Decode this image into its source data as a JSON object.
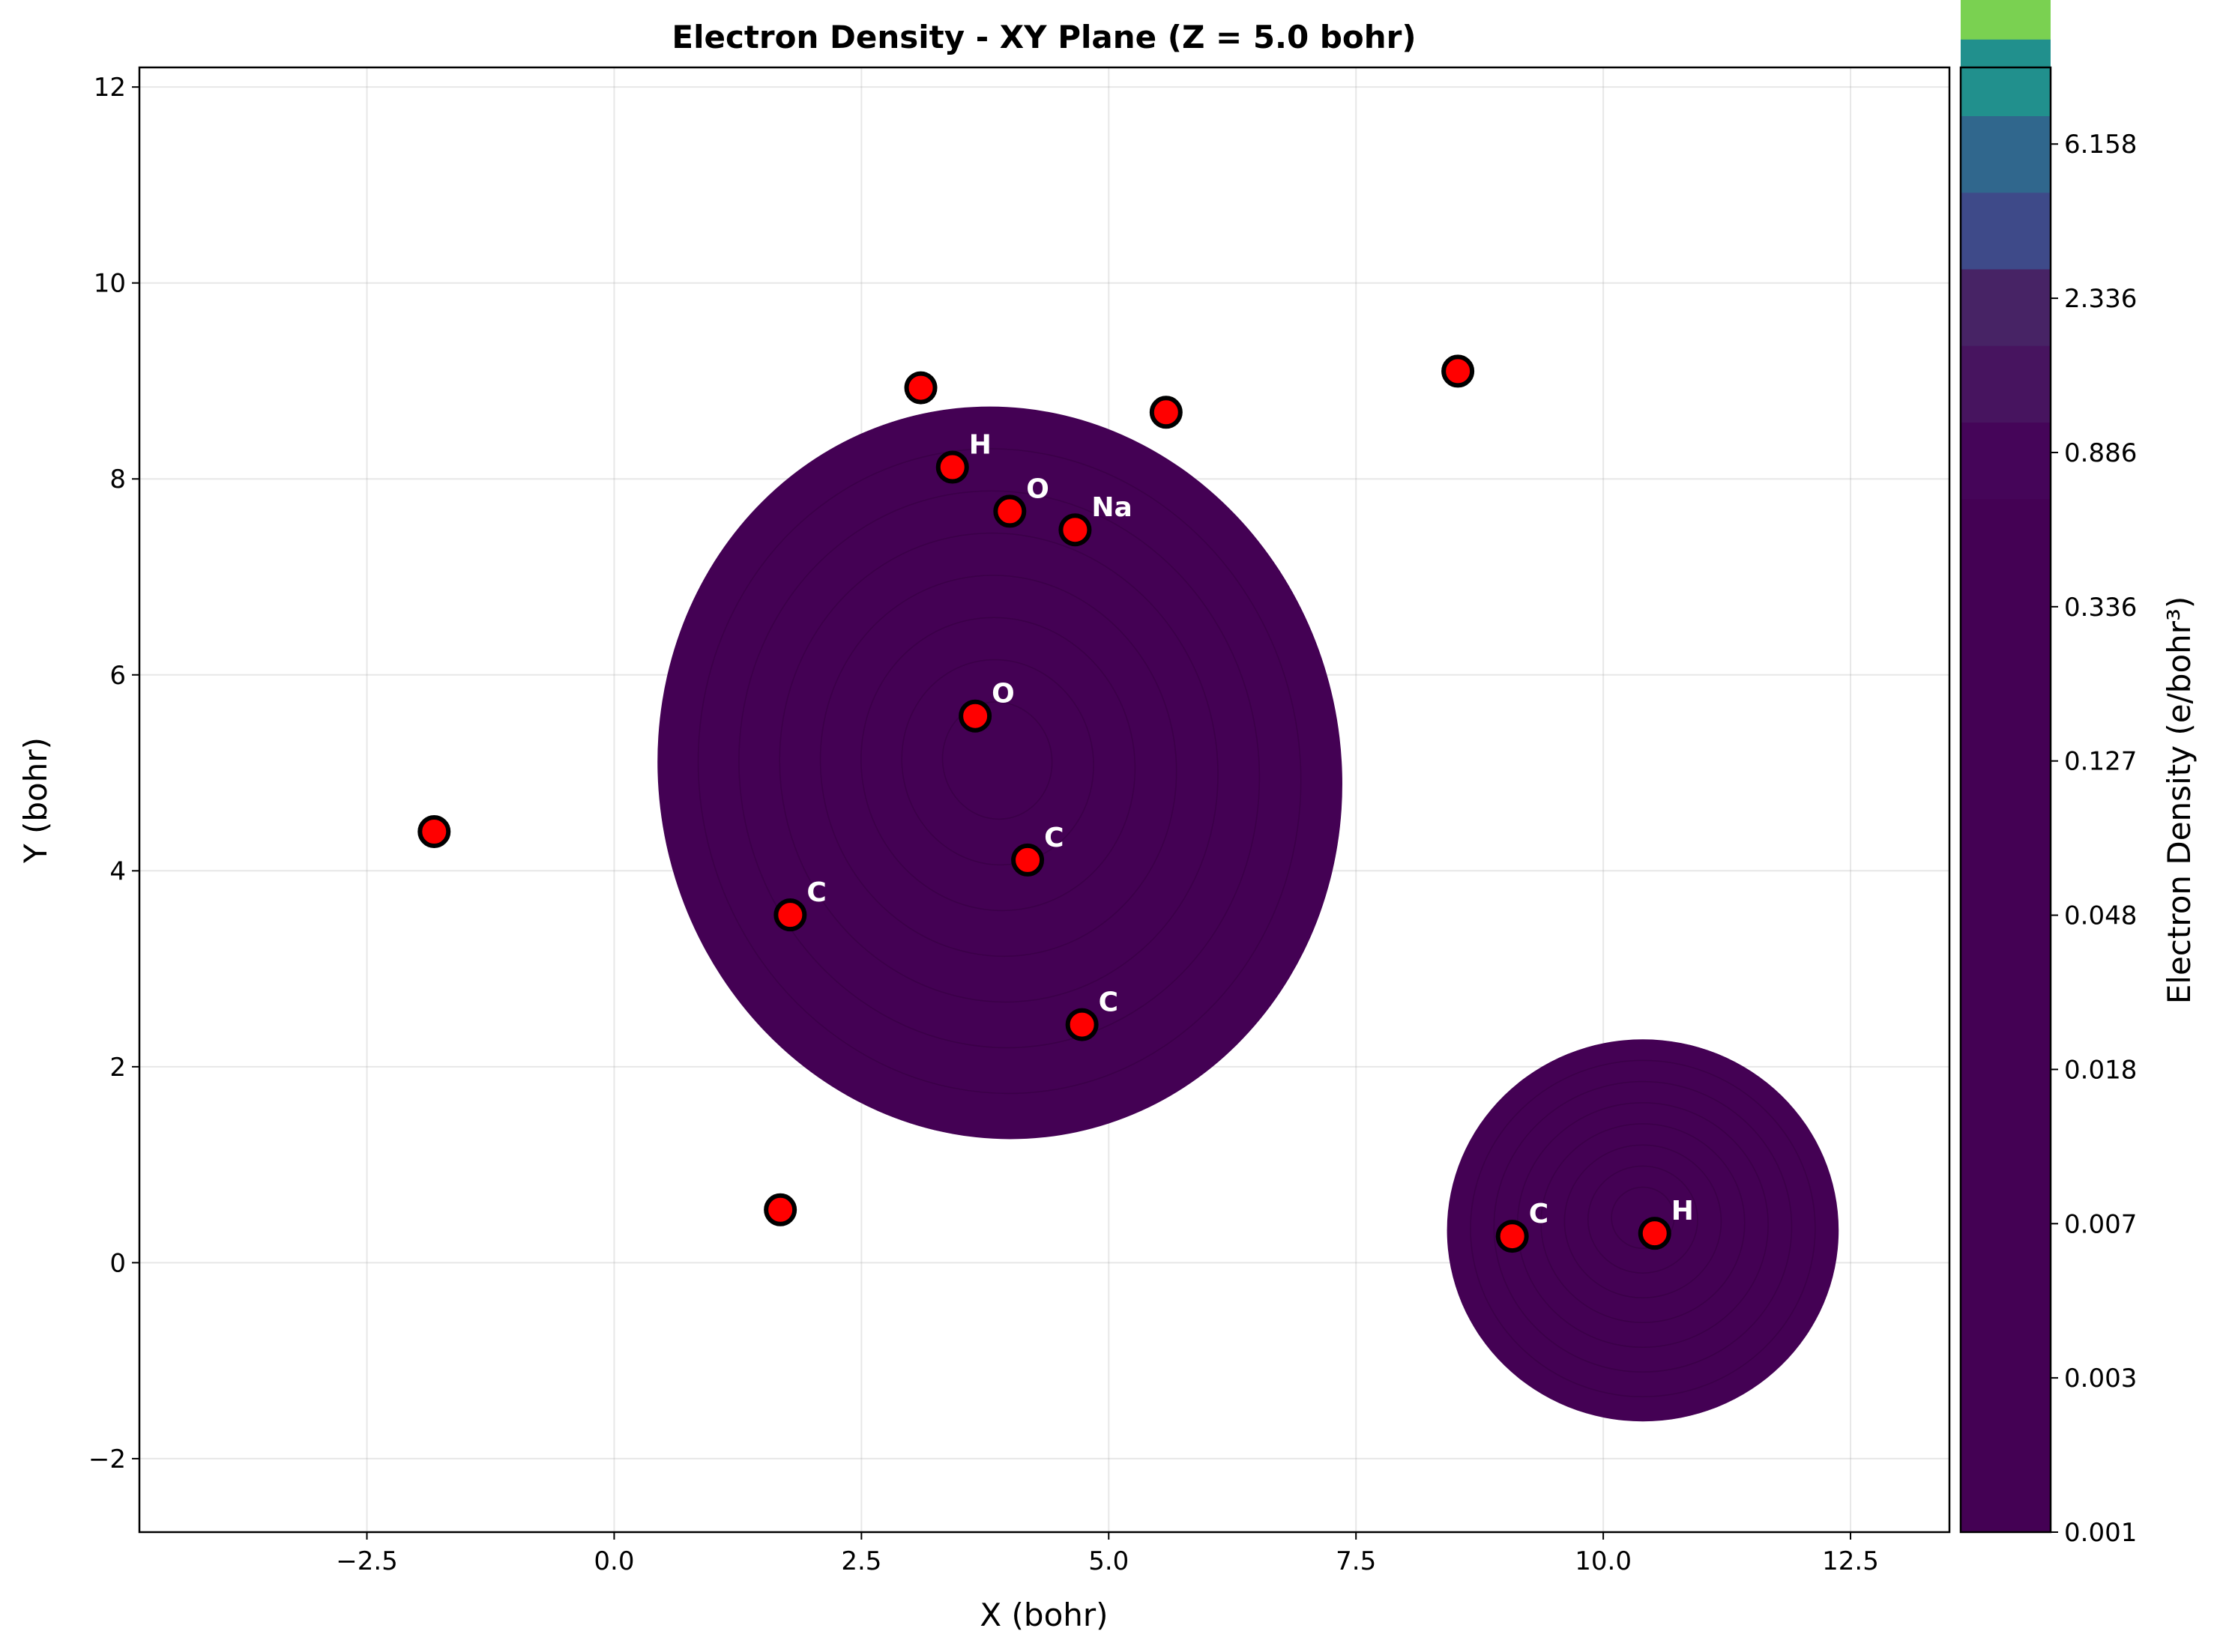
{
  "chart_data": {
    "type": "contour",
    "title": "Electron Density - XY Plane (Z = 5.0 bohr)",
    "xlabel": "X (bohr)",
    "ylabel": "Y (bohr)",
    "xlim": [
      -4.8,
      13.5
    ],
    "ylim": [
      -2.75,
      12.2
    ],
    "xticks": [
      -2.5,
      0.0,
      2.5,
      5.0,
      7.5,
      10.0,
      12.5
    ],
    "xtick_labels": [
      "−2.5",
      "0.0",
      "2.5",
      "5.0",
      "7.5",
      "10.0",
      "12.5"
    ],
    "yticks": [
      -2,
      0,
      2,
      4,
      6,
      8,
      10,
      12
    ],
    "ytick_labels": [
      "−2",
      "0",
      "2",
      "4",
      "6",
      "8",
      "10",
      "12"
    ],
    "grid": true,
    "colormap": "viridis",
    "density_regions": [
      {
        "cx": 3.9,
        "cy": 5.0,
        "rx": 3.45,
        "ry": 3.75,
        "rotation": -12,
        "color": "#440154"
      },
      {
        "cx": 10.4,
        "cy": 0.33,
        "rx": 1.98,
        "ry": 1.95,
        "rotation": 0,
        "color": "#440154"
      }
    ],
    "atoms": [
      {
        "x": 3.1,
        "y": 8.93,
        "label": ""
      },
      {
        "x": 3.42,
        "y": 8.12,
        "label": "H"
      },
      {
        "x": 4.0,
        "y": 7.67,
        "label": "O"
      },
      {
        "x": 4.66,
        "y": 7.48,
        "label": "Na"
      },
      {
        "x": 5.58,
        "y": 8.68,
        "label": ""
      },
      {
        "x": 8.53,
        "y": 9.1,
        "label": ""
      },
      {
        "x": 3.65,
        "y": 5.58,
        "label": "O"
      },
      {
        "x": 4.18,
        "y": 4.11,
        "label": "C"
      },
      {
        "x": -1.82,
        "y": 4.4,
        "label": ""
      },
      {
        "x": 1.78,
        "y": 3.55,
        "label": "C"
      },
      {
        "x": 4.73,
        "y": 2.43,
        "label": "C"
      },
      {
        "x": 1.68,
        "y": 0.54,
        "label": ""
      },
      {
        "x": 9.08,
        "y": 0.27,
        "label": "C"
      },
      {
        "x": 10.52,
        "y": 0.3,
        "label": "H"
      }
    ],
    "colorbar": {
      "label": "Electron Density (e/bohr³)",
      "tick_labels": [
        "0.001",
        "0.003",
        "0.007",
        "0.018",
        "0.048",
        "0.127",
        "0.336",
        "0.886",
        "2.336",
        "6.158"
      ],
      "bands": [
        {
          "color": "#440154",
          "fraction": 0.7055
        },
        {
          "color": "#450559",
          "fraction": 0.0523
        },
        {
          "color": "#47145f",
          "fraction": 0.0523
        },
        {
          "color": "#472365",
          "fraction": 0.0523
        },
        {
          "color": "#3e4a89",
          "fraction": 0.0523
        },
        {
          "color": "#30678d",
          "fraction": 0.0523
        },
        {
          "color": "#21908d",
          "fraction": 0.0523
        },
        {
          "color": "#7ad151",
          "fraction": 0.0523
        }
      ]
    }
  }
}
